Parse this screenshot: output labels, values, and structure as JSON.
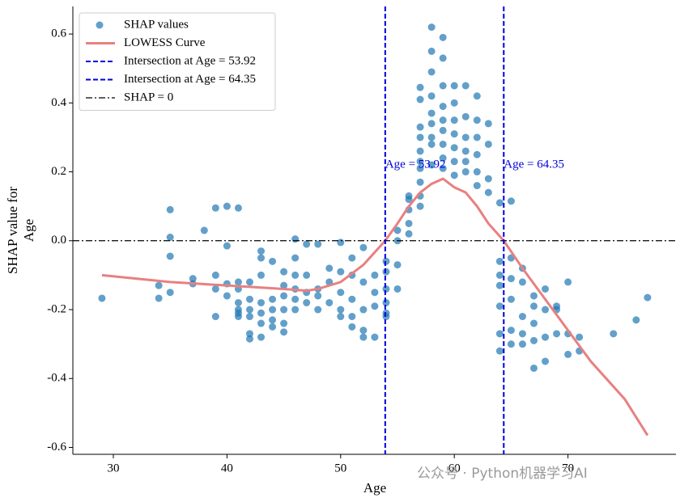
{
  "chart_data": {
    "type": "scatter",
    "xlabel": "Age",
    "ylabel": [
      "SHAP value for",
      "Age"
    ],
    "xlim": [
      26.44,
      79.5
    ],
    "ylim": [
      -0.62,
      0.68
    ],
    "xticks": [
      30,
      40,
      50,
      60,
      70
    ],
    "yticks": [
      -0.6,
      -0.4,
      -0.2,
      {
        "value": 0,
        "label": "0.0"
      },
      0.2,
      0.4,
      0.6
    ],
    "series": [
      {
        "name": "SHAP values",
        "type": "scatter",
        "color": "#1f77b4",
        "x": [
          29,
          34,
          34,
          35,
          35,
          35,
          35,
          37,
          37,
          38,
          39,
          39,
          39,
          39,
          40,
          40,
          40,
          40,
          41,
          41,
          41,
          41,
          41,
          41,
          41,
          42,
          42,
          42,
          42,
          42,
          42,
          43,
          43,
          43,
          43,
          43,
          43,
          43,
          44,
          44,
          44,
          44,
          44,
          45,
          45,
          45,
          45,
          45,
          45,
          46,
          46,
          46,
          46,
          46,
          46,
          47,
          47,
          47,
          47,
          48,
          48,
          48,
          48,
          49,
          49,
          49,
          50,
          50,
          50,
          50,
          50,
          51,
          51,
          51,
          51,
          51,
          52,
          52,
          52,
          52,
          52,
          53,
          53,
          53,
          53,
          54,
          54,
          54,
          54,
          54,
          54,
          55,
          55,
          55,
          55,
          56,
          56,
          56,
          56,
          56,
          57,
          57,
          57,
          57,
          57,
          57,
          57,
          57,
          57,
          57,
          58,
          58,
          58,
          58,
          58,
          58,
          58,
          58,
          58,
          59,
          59,
          59,
          59,
          59,
          59,
          59,
          59,
          59,
          60,
          60,
          60,
          60,
          60,
          60,
          60,
          61,
          61,
          61,
          61,
          61,
          61,
          62,
          62,
          62,
          62,
          62,
          62,
          63,
          63,
          63,
          63,
          64,
          64,
          64,
          64,
          64,
          64,
          64,
          65,
          65,
          65,
          65,
          65,
          65,
          66,
          66,
          66,
          66,
          66,
          67,
          67,
          67,
          67,
          67,
          68,
          68,
          68,
          68,
          69,
          69,
          69,
          70,
          70,
          70,
          71,
          71,
          74,
          76,
          77
        ],
        "values": [
          -0.167,
          -0.13,
          -0.167,
          0.09,
          0.01,
          -0.045,
          -0.15,
          -0.11,
          -0.125,
          0.03,
          0.095,
          -0.1,
          -0.22,
          -0.14,
          0.1,
          -0.015,
          -0.125,
          -0.16,
          0.095,
          -0.12,
          -0.14,
          -0.18,
          -0.2,
          -0.21,
          -0.22,
          -0.12,
          -0.17,
          -0.2,
          -0.22,
          -0.27,
          -0.285,
          -0.03,
          -0.05,
          -0.1,
          -0.18,
          -0.21,
          -0.24,
          -0.28,
          -0.06,
          -0.17,
          -0.2,
          -0.23,
          -0.25,
          -0.09,
          -0.13,
          -0.16,
          -0.2,
          -0.24,
          -0.265,
          0.005,
          -0.05,
          -0.1,
          -0.14,
          -0.17,
          -0.2,
          -0.01,
          -0.1,
          -0.15,
          -0.18,
          -0.01,
          -0.14,
          -0.16,
          -0.2,
          -0.08,
          -0.12,
          -0.18,
          -0.005,
          -0.09,
          -0.15,
          -0.2,
          -0.22,
          -0.05,
          -0.1,
          -0.17,
          -0.22,
          -0.25,
          -0.02,
          -0.12,
          -0.2,
          -0.26,
          -0.28,
          -0.1,
          -0.15,
          -0.19,
          -0.28,
          -0.06,
          -0.09,
          -0.14,
          -0.18,
          -0.21,
          -0.22,
          0.03,
          0.0,
          -0.07,
          -0.14,
          0.13,
          0.12,
          0.09,
          0.05,
          0.02,
          0.445,
          0.41,
          0.33,
          0.3,
          0.26,
          0.23,
          0.21,
          0.17,
          0.13,
          0.1,
          0.62,
          0.55,
          0.49,
          0.42,
          0.37,
          0.34,
          0.3,
          0.28,
          0.22,
          0.59,
          0.53,
          0.45,
          0.39,
          0.35,
          0.32,
          0.28,
          0.24,
          0.21,
          0.45,
          0.4,
          0.35,
          0.31,
          0.27,
          0.23,
          0.19,
          0.45,
          0.36,
          0.3,
          0.26,
          0.23,
          0.2,
          0.42,
          0.35,
          0.3,
          0.25,
          0.2,
          0.16,
          0.34,
          0.28,
          0.18,
          0.14,
          0.11,
          -0.06,
          -0.1,
          -0.13,
          -0.19,
          -0.27,
          -0.32,
          0.115,
          -0.05,
          -0.11,
          -0.17,
          -0.26,
          -0.3,
          -0.08,
          -0.12,
          -0.22,
          -0.27,
          -0.3,
          -0.16,
          -0.19,
          -0.24,
          -0.29,
          -0.37,
          -0.14,
          -0.2,
          -0.28,
          -0.35,
          -0.19,
          -0.2,
          -0.27,
          -0.12,
          -0.27,
          -0.33,
          -0.28,
          -0.32,
          -0.27,
          -0.23,
          -0.165
        ]
      },
      {
        "name": "LOWESS Curve",
        "type": "line",
        "color": "#e88080",
        "x": [
          29,
          35,
          40,
          45,
          47,
          48,
          50,
          52,
          53.92,
          55,
          56,
          57,
          58,
          59,
          60,
          61,
          62,
          63,
          64.35,
          66,
          68,
          70,
          72,
          75,
          77
        ],
        "values": [
          -0.1,
          -0.12,
          -0.13,
          -0.14,
          -0.145,
          -0.14,
          -0.12,
          -0.07,
          0,
          0.05,
          0.1,
          0.14,
          0.165,
          0.18,
          0.155,
          0.14,
          0.1,
          0.05,
          0,
          -0.08,
          -0.17,
          -0.26,
          -0.35,
          -0.46,
          -0.565
        ]
      }
    ],
    "vlines": [
      {
        "x": 53.92,
        "color": "#0000dd",
        "label": "Intersection at Age = 53.92",
        "annotation": "Age = 53.92"
      },
      {
        "x": 64.35,
        "color": "#0000dd",
        "label": "Intersection at Age = 64.35",
        "annotation": "Age = 64.35"
      }
    ],
    "hline": {
      "y": 0,
      "color": "#000000",
      "label": "SHAP = 0"
    },
    "legend": "upper left",
    "watermark": "公众号 · Python机器学习AI"
  }
}
